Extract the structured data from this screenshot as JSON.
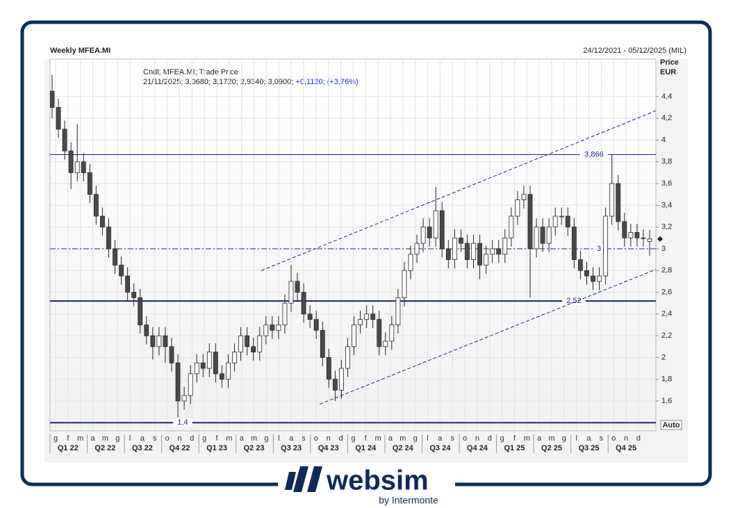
{
  "chart_data": {
    "type": "candlestick",
    "title": "Weekly MFEA.MI",
    "date_range": "24/12/2021 - 05/12/2025 (MIL)",
    "y_label": "Price",
    "y_unit": "EUR",
    "legend_title": "Cndl; MFEA.MI; Trade Price",
    "legend_values": "21/11/2025; 3,0680; 3,1720; 2,9340; 3,0900;",
    "legend_change": "+0,1120; (+3,76%)",
    "scale_mode": "Auto",
    "categories": [
      "g",
      "f",
      "m",
      "a",
      "m",
      "g",
      "l",
      "a",
      "s",
      "o",
      "n",
      "d",
      "g",
      "f",
      "m",
      "a",
      "m",
      "g",
      "l",
      "a",
      "s",
      "o",
      "n",
      "d",
      "g",
      "f",
      "m",
      "a",
      "m",
      "g",
      "l",
      "a",
      "s",
      "o",
      "n",
      "d",
      "g",
      "f",
      "m",
      "a",
      "m",
      "g",
      "l",
      "a",
      "s",
      "o",
      "n",
      "d"
    ],
    "quarters": [
      "Q1 22",
      "Q2 22",
      "Q3 22",
      "Q4 22",
      "Q1 23",
      "Q2 23",
      "Q3 23",
      "Q4 23",
      "Q1 24",
      "Q2 24",
      "Q3 24",
      "Q4 24",
      "Q1 25",
      "Q2 25",
      "Q3 25",
      "Q4 25"
    ],
    "open": [
      4.45,
      4.3,
      4.1,
      3.9,
      3.7,
      3.8,
      3.7,
      3.5,
      3.3,
      3.2,
      3.0,
      2.85,
      2.75,
      2.6,
      2.55,
      2.3,
      2.2,
      2.1,
      2.2,
      2.1,
      1.95,
      1.6,
      1.65,
      1.85,
      1.95,
      1.9,
      2.05,
      1.85,
      1.8,
      1.95,
      2.05,
      2.2,
      2.1,
      2.05,
      2.2,
      2.3,
      2.25,
      2.3,
      2.5,
      2.7,
      2.6,
      2.4,
      2.35,
      2.25,
      2.0,
      1.8,
      1.7,
      1.9,
      2.1,
      2.3,
      2.35,
      2.4,
      2.35,
      2.1,
      2.15,
      2.3,
      2.55,
      2.8,
      2.95,
      3.05,
      3.2,
      3.1,
      3.35,
      3.0,
      2.9,
      3.1,
      3.05,
      2.9,
      3.05,
      2.85,
      2.95,
      3.0,
      2.95,
      3.1,
      3.3,
      3.45,
      3.5,
      3.0,
      3.2,
      3.05,
      3.2,
      3.3,
      3.3,
      3.2,
      2.9,
      2.8,
      2.75,
      2.7,
      2.75,
      3.3,
      3.6,
      3.25,
      3.1,
      3.15,
      3.1,
      3.068
    ],
    "high": [
      4.6,
      4.38,
      4.18,
      3.98,
      4.15,
      3.88,
      3.78,
      3.58,
      3.38,
      3.28,
      3.08,
      2.93,
      2.83,
      2.68,
      2.63,
      2.38,
      2.28,
      2.28,
      2.28,
      2.18,
      2.03,
      1.73,
      1.93,
      2.03,
      2.03,
      2.13,
      2.13,
      1.93,
      2.03,
      2.13,
      2.28,
      2.28,
      2.18,
      2.28,
      2.38,
      2.38,
      2.38,
      2.58,
      2.85,
      2.78,
      2.68,
      2.48,
      2.43,
      2.33,
      2.08,
      1.88,
      1.98,
      2.18,
      2.38,
      2.43,
      2.48,
      2.48,
      2.43,
      2.23,
      2.38,
      2.63,
      2.88,
      3.03,
      3.13,
      3.28,
      3.28,
      3.57,
      3.43,
      3.08,
      3.18,
      3.18,
      3.13,
      3.13,
      3.13,
      3.03,
      3.08,
      3.08,
      3.18,
      3.38,
      3.53,
      3.58,
      3.58,
      3.28,
      3.28,
      3.28,
      3.38,
      3.38,
      3.38,
      3.28,
      2.98,
      2.88,
      2.83,
      2.83,
      3.38,
      3.87,
      3.68,
      3.33,
      3.23,
      3.23,
      3.18,
      3.172
    ],
    "low": [
      4.2,
      4.02,
      3.82,
      3.55,
      3.62,
      3.62,
      3.42,
      3.22,
      3.12,
      2.92,
      2.77,
      2.67,
      2.52,
      2.47,
      2.22,
      2.12,
      1.98,
      2.02,
      1.95,
      1.87,
      1.45,
      1.52,
      1.57,
      1.77,
      1.82,
      1.82,
      1.77,
      1.72,
      1.72,
      1.87,
      1.97,
      2.02,
      1.97,
      1.97,
      2.12,
      2.17,
      2.17,
      2.22,
      2.42,
      2.52,
      2.32,
      2.27,
      2.17,
      1.92,
      1.72,
      1.6,
      1.62,
      1.82,
      2.02,
      2.22,
      2.27,
      2.27,
      2.02,
      2.02,
      2.07,
      2.22,
      2.47,
      2.72,
      2.87,
      2.97,
      3.02,
      3.02,
      2.92,
      2.82,
      2.82,
      2.97,
      2.82,
      2.82,
      2.72,
      2.77,
      2.87,
      2.87,
      2.87,
      3.02,
      3.22,
      3.37,
      2.55,
      2.92,
      2.97,
      2.97,
      3.12,
      3.22,
      3.12,
      2.82,
      2.72,
      2.67,
      2.62,
      2.62,
      2.67,
      3.22,
      3.17,
      3.02,
      3.02,
      3.02,
      3.02,
      2.934
    ],
    "close": [
      4.3,
      4.1,
      3.9,
      3.7,
      3.8,
      3.7,
      3.5,
      3.3,
      3.2,
      3.0,
      2.85,
      2.75,
      2.6,
      2.55,
      2.3,
      2.2,
      2.1,
      2.2,
      2.1,
      1.95,
      1.6,
      1.65,
      1.85,
      1.95,
      1.9,
      2.05,
      1.85,
      1.8,
      1.95,
      2.05,
      2.2,
      2.1,
      2.05,
      2.2,
      2.3,
      2.25,
      2.3,
      2.5,
      2.7,
      2.6,
      2.4,
      2.35,
      2.25,
      2.0,
      1.8,
      1.7,
      1.9,
      2.1,
      2.3,
      2.35,
      2.4,
      2.35,
      2.1,
      2.15,
      2.3,
      2.55,
      2.8,
      2.95,
      3.05,
      3.2,
      3.1,
      3.35,
      3.0,
      2.9,
      3.1,
      3.05,
      2.9,
      3.05,
      2.85,
      2.95,
      3.0,
      2.95,
      3.1,
      3.3,
      3.45,
      3.5,
      3.0,
      3.2,
      3.05,
      3.2,
      3.3,
      3.3,
      3.2,
      2.9,
      2.8,
      2.75,
      2.7,
      2.75,
      3.3,
      3.6,
      3.25,
      3.1,
      3.15,
      3.1,
      3.1,
      3.09
    ],
    "ylim": [
      1.325,
      4.745
    ],
    "yticks": [
      {
        "value": 1.6,
        "label": "1,6"
      },
      {
        "value": 1.8,
        "label": "1,8"
      },
      2,
      {
        "value": 2.2,
        "label": "2,2"
      },
      {
        "value": 2.4,
        "label": "2,4"
      },
      {
        "value": 2.6,
        "label": "2,6"
      },
      {
        "value": 2.8,
        "label": "2,8"
      },
      3,
      {
        "value": 3.2,
        "label": "3,2"
      },
      {
        "value": 3.4,
        "label": "3,4"
      },
      {
        "value": 3.6,
        "label": "3,6"
      },
      {
        "value": 3.8,
        "label": "3,8"
      },
      4,
      {
        "value": 4.2,
        "label": "4,2"
      },
      {
        "value": 4.4,
        "label": "4,4"
      }
    ],
    "hlines": [
      {
        "value": 3.866,
        "label": "3,866",
        "style": "solid"
      },
      {
        "value": 3,
        "label": "3",
        "style": "dash-dot"
      },
      {
        "value": 2.52,
        "label": "2,52",
        "style": "thick"
      },
      {
        "value": 1.4,
        "label": "1,4",
        "style": "thick"
      }
    ],
    "trendlines": [
      {
        "x": [
          16.6,
          48.4
        ],
        "y": [
          2.8,
          4.27
        ]
      },
      {
        "x": [
          21.3,
          48.4
        ],
        "y": [
          1.57,
          2.81
        ]
      }
    ],
    "grid": true,
    "up_color": "#ffffff",
    "down_color": "#4a4a4a",
    "line_color": "#1a237e"
  },
  "brand": {
    "name": "websim",
    "tagline": "by Intermonte"
  }
}
